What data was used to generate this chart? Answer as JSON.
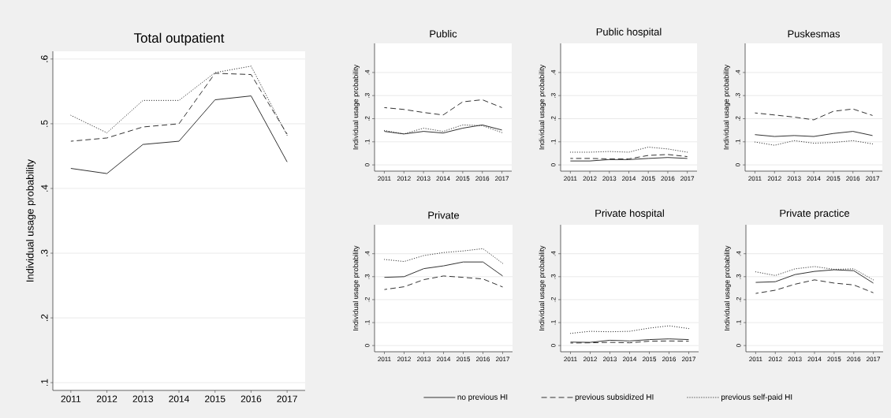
{
  "chart_data": [
    {
      "type": "line",
      "title": "Total outpatient",
      "ylabel": "Individual usage probability",
      "x": [
        2011,
        2012,
        2013,
        2014,
        2015,
        2016,
        2017
      ],
      "xlim": [
        2010.5,
        2017.5
      ],
      "xticks": [
        2011,
        2012,
        2013,
        2014,
        2015,
        2016,
        2017
      ],
      "ylim": [
        0.088,
        0.612
      ],
      "yticks": [
        {
          "value": 0.1,
          "label": ".1"
        },
        {
          "value": 0.2,
          "label": ".2"
        },
        {
          "value": 0.3,
          "label": ".3"
        },
        {
          "value": 0.4,
          "label": ".4"
        },
        {
          "value": 0.5,
          "label": ".5"
        },
        {
          "value": 0.6,
          "label": ".6"
        }
      ],
      "grid": "y",
      "series": [
        {
          "color": "#333333",
          "line_style": "solid",
          "values": [
            0.431,
            0.423,
            0.468,
            0.473,
            0.537,
            0.543,
            0.441
          ]
        },
        {
          "color": "#333333",
          "line_style": "dashed",
          "values": [
            0.473,
            0.478,
            0.495,
            0.5,
            0.578,
            0.576,
            0.484
          ]
        },
        {
          "color": "#333333",
          "line_style": "dotted",
          "values": [
            0.513,
            0.486,
            0.536,
            0.536,
            0.579,
            0.589,
            0.482
          ]
        }
      ]
    },
    {
      "type": "line",
      "title": "Public",
      "ylabel": "Individual usage probability",
      "x": [
        2011,
        2012,
        2013,
        2014,
        2015,
        2016,
        2017
      ],
      "xlim": [
        2010.5,
        2017.5
      ],
      "xticks": [
        2011,
        2012,
        2013,
        2014,
        2015,
        2016,
        2017
      ],
      "ylim": [
        -0.027,
        0.526
      ],
      "yticks": [
        0,
        {
          "value": 0.1,
          "label": ".1"
        },
        {
          "value": 0.2,
          "label": ".2"
        },
        {
          "value": 0.3,
          "label": ".3"
        },
        {
          "value": 0.4,
          "label": ".4"
        }
      ],
      "grid": "y",
      "series": [
        {
          "color": "#333333",
          "line_style": "solid",
          "values": [
            0.145,
            0.134,
            0.145,
            0.138,
            0.159,
            0.173,
            0.151
          ]
        },
        {
          "color": "#333333",
          "line_style": "dashed",
          "values": [
            0.248,
            0.24,
            0.227,
            0.216,
            0.273,
            0.282,
            0.248
          ]
        },
        {
          "color": "#333333",
          "line_style": "dotted",
          "values": [
            0.149,
            0.134,
            0.159,
            0.145,
            0.173,
            0.17,
            0.14
          ]
        }
      ]
    },
    {
      "type": "line",
      "title": "Public hospital",
      "ylabel": "Individual usage probability",
      "x": [
        2011,
        2012,
        2013,
        2014,
        2015,
        2016,
        2017
      ],
      "xlim": [
        2010.5,
        2017.5
      ],
      "xticks": [
        2011,
        2012,
        2013,
        2014,
        2015,
        2016,
        2017
      ],
      "ylim": [
        -0.027,
        0.526
      ],
      "yticks": [
        0,
        {
          "value": 0.1,
          "label": ".1"
        },
        {
          "value": 0.2,
          "label": ".2"
        },
        {
          "value": 0.3,
          "label": ".3"
        },
        {
          "value": 0.4,
          "label": ".4"
        }
      ],
      "grid": "y",
      "series": [
        {
          "color": "#333333",
          "line_style": "solid",
          "values": [
            0.017,
            0.017,
            0.023,
            0.023,
            0.028,
            0.032,
            0.028
          ]
        },
        {
          "color": "#333333",
          "line_style": "dashed",
          "values": [
            0.028,
            0.028,
            0.026,
            0.026,
            0.041,
            0.045,
            0.036
          ]
        },
        {
          "color": "#333333",
          "line_style": "dotted",
          "values": [
            0.055,
            0.055,
            0.058,
            0.055,
            0.077,
            0.069,
            0.055
          ]
        }
      ]
    },
    {
      "type": "line",
      "title": "Puskesmas",
      "ylabel": "Individual usage probability",
      "x": [
        2011,
        2012,
        2013,
        2014,
        2015,
        2016,
        2017
      ],
      "xlim": [
        2010.5,
        2017.5
      ],
      "xticks": [
        2011,
        2012,
        2013,
        2014,
        2015,
        2016,
        2017
      ],
      "ylim": [
        -0.027,
        0.526
      ],
      "yticks": [
        0,
        {
          "value": 0.1,
          "label": ".1"
        },
        {
          "value": 0.2,
          "label": ".2"
        },
        {
          "value": 0.3,
          "label": ".3"
        },
        {
          "value": 0.4,
          "label": ".4"
        }
      ],
      "grid": "y",
      "series": [
        {
          "color": "#333333",
          "line_style": "solid",
          "values": [
            0.131,
            0.123,
            0.127,
            0.123,
            0.136,
            0.145,
            0.127
          ]
        },
        {
          "color": "#333333",
          "line_style": "dashed",
          "values": [
            0.225,
            0.216,
            0.207,
            0.195,
            0.232,
            0.242,
            0.214
          ]
        },
        {
          "color": "#333333",
          "line_style": "dotted",
          "values": [
            0.099,
            0.085,
            0.105,
            0.094,
            0.097,
            0.105,
            0.091
          ]
        }
      ]
    },
    {
      "type": "line",
      "title": "Private",
      "ylabel": "Individual usage probability",
      "x": [
        2011,
        2012,
        2013,
        2014,
        2015,
        2016,
        2017
      ],
      "xlim": [
        2010.5,
        2017.5
      ],
      "xticks": [
        2011,
        2012,
        2013,
        2014,
        2015,
        2016,
        2017
      ],
      "ylim": [
        -0.027,
        0.526
      ],
      "yticks": [
        0,
        {
          "value": 0.1,
          "label": ".1"
        },
        {
          "value": 0.2,
          "label": ".2"
        },
        {
          "value": 0.3,
          "label": ".3"
        },
        {
          "value": 0.4,
          "label": ".4"
        }
      ],
      "grid": "y",
      "series": [
        {
          "color": "#333333",
          "line_style": "solid",
          "values": [
            0.297,
            0.3,
            0.335,
            0.347,
            0.364,
            0.364,
            0.303
          ]
        },
        {
          "color": "#333333",
          "line_style": "dashed",
          "values": [
            0.244,
            0.256,
            0.287,
            0.303,
            0.297,
            0.29,
            0.255
          ]
        },
        {
          "color": "#333333",
          "line_style": "dotted",
          "values": [
            0.375,
            0.366,
            0.392,
            0.405,
            0.412,
            0.422,
            0.358
          ]
        }
      ]
    },
    {
      "type": "line",
      "title": "Private hospital",
      "ylabel": "Individual usage probability",
      "x": [
        2011,
        2012,
        2013,
        2014,
        2015,
        2016,
        2017
      ],
      "xlim": [
        2010.5,
        2017.5
      ],
      "xticks": [
        2011,
        2012,
        2013,
        2014,
        2015,
        2016,
        2017
      ],
      "ylim": [
        -0.027,
        0.526
      ],
      "yticks": [
        0,
        {
          "value": 0.1,
          "label": ".1"
        },
        {
          "value": 0.2,
          "label": ".2"
        },
        {
          "value": 0.3,
          "label": ".3"
        },
        {
          "value": 0.4,
          "label": ".4"
        }
      ],
      "grid": "y",
      "series": [
        {
          "color": "#333333",
          "line_style": "solid",
          "values": [
            0.015,
            0.014,
            0.023,
            0.02,
            0.026,
            0.029,
            0.026
          ]
        },
        {
          "color": "#333333",
          "line_style": "dashed",
          "values": [
            0.011,
            0.012,
            0.014,
            0.012,
            0.019,
            0.02,
            0.019
          ]
        },
        {
          "color": "#333333",
          "line_style": "dotted",
          "values": [
            0.053,
            0.062,
            0.06,
            0.062,
            0.076,
            0.086,
            0.074
          ]
        }
      ]
    },
    {
      "type": "line",
      "title": "Private practice",
      "ylabel": "Individual usage probability",
      "x": [
        2011,
        2012,
        2013,
        2014,
        2015,
        2016,
        2017
      ],
      "xlim": [
        2010.5,
        2017.5
      ],
      "xticks": [
        2011,
        2012,
        2013,
        2014,
        2015,
        2016,
        2017
      ],
      "ylim": [
        -0.027,
        0.526
      ],
      "yticks": [
        0,
        {
          "value": 0.1,
          "label": ".1"
        },
        {
          "value": 0.2,
          "label": ".2"
        },
        {
          "value": 0.3,
          "label": ".3"
        },
        {
          "value": 0.4,
          "label": ".4"
        }
      ],
      "grid": "y",
      "legend": "bottom",
      "series": [
        {
          "name": "no previous HI",
          "color": "#333333",
          "line_style": "solid",
          "values": [
            0.275,
            0.278,
            0.309,
            0.323,
            0.33,
            0.326,
            0.272
          ]
        },
        {
          "name": "previous subsidized HI",
          "color": "#333333",
          "line_style": "dashed",
          "values": [
            0.227,
            0.241,
            0.267,
            0.286,
            0.272,
            0.264,
            0.23
          ]
        },
        {
          "name": "previous self-paid HI",
          "color": "#333333",
          "line_style": "dotted",
          "values": [
            0.321,
            0.305,
            0.334,
            0.344,
            0.332,
            0.334,
            0.286
          ]
        }
      ]
    }
  ]
}
